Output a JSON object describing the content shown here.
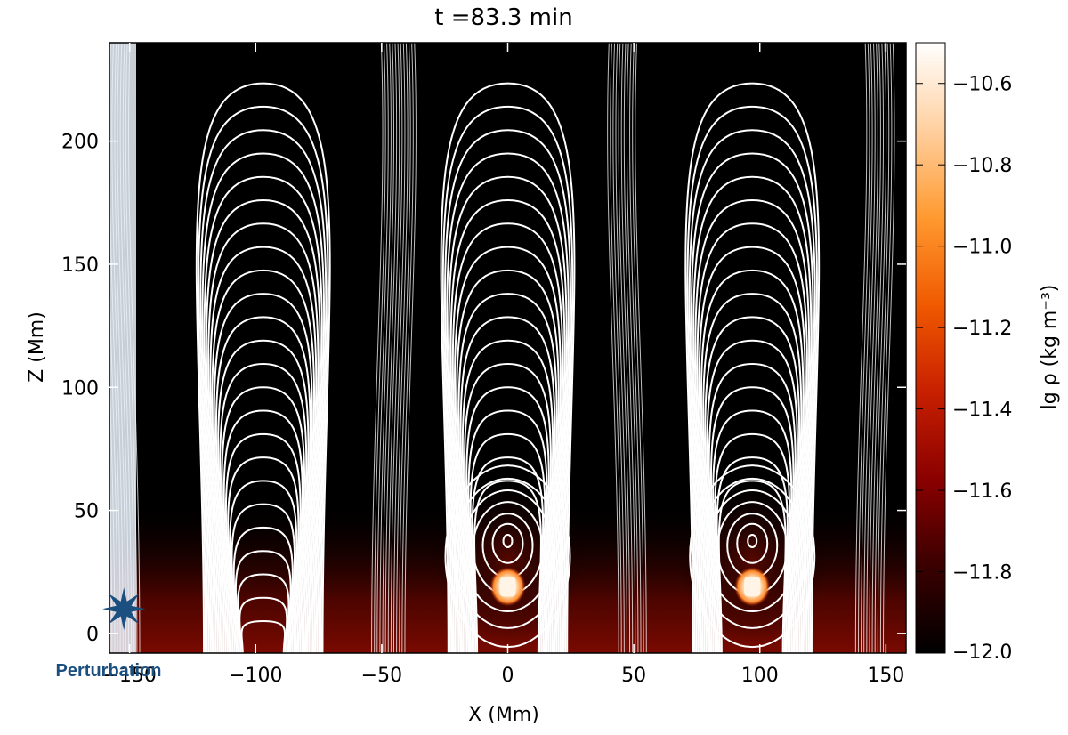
{
  "chart_data": {
    "type": "heatmap",
    "title": "t =83.3 min",
    "xlabel": "X (Mm)",
    "ylabel": "Z (Mm)",
    "xlim": [
      -158,
      158
    ],
    "ylim": [
      -8,
      240
    ],
    "x_ticks": [
      -150,
      -100,
      -50,
      0,
      50,
      100,
      150
    ],
    "x_tick_labels": [
      "−150",
      "−100",
      "−50",
      "0",
      "50",
      "100",
      "150"
    ],
    "y_ticks": [
      0,
      50,
      100,
      150,
      200
    ],
    "y_tick_labels": [
      "0",
      "50",
      "100",
      "150",
      "200"
    ],
    "colorbar": {
      "label": "lg ρ (kg m⁻³)",
      "range": [
        -12.0,
        -10.5
      ],
      "ticks": [
        -12.0,
        -11.8,
        -11.6,
        -11.4,
        -11.2,
        -11.0,
        -10.8,
        -10.6
      ],
      "tick_labels": [
        "−12.0",
        "−11.8",
        "−11.6",
        "−11.4",
        "−11.2",
        "−11.0",
        "−10.8",
        "−10.6"
      ],
      "colormap": [
        "#000000",
        "#3a0000",
        "#8b0000",
        "#c82000",
        "#f05a00",
        "#ff9a30",
        "#ffd0a0",
        "#ffffff"
      ]
    },
    "field_line_centers_x": [
      -97,
      0,
      97
    ],
    "flux_rope_centers": [
      {
        "x": 0,
        "z": 38
      },
      {
        "x": 97,
        "z": 38
      }
    ],
    "prominence_blobs": [
      {
        "x": 0,
        "z": 19
      },
      {
        "x": 97,
        "z": 19
      }
    ],
    "annotation": {
      "text": "Perturbation",
      "x": -153,
      "z": 10,
      "color": "#1a4f7f",
      "marker": "star-icon"
    }
  }
}
